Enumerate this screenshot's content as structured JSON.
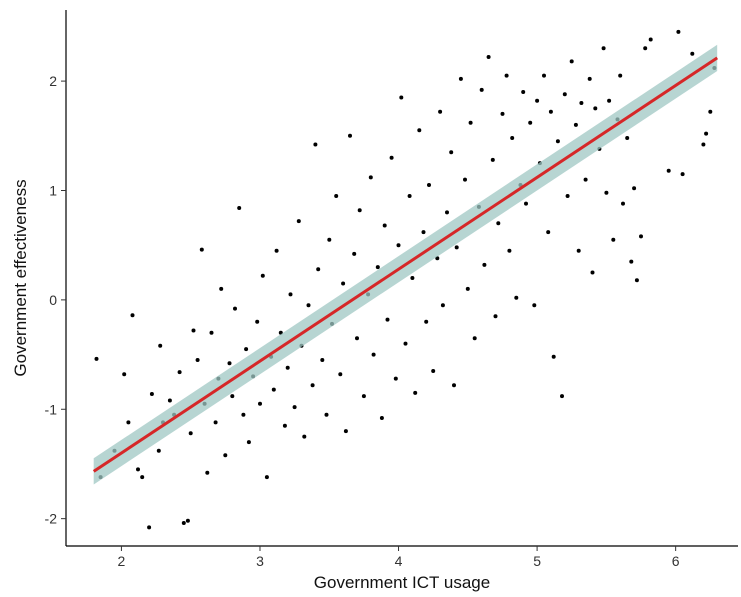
{
  "chart_data": {
    "type": "scatter",
    "title": "",
    "xlabel": "Government ICT usage",
    "ylabel": "Government effectiveness",
    "xlim": [
      1.6,
      6.45
    ],
    "ylim": [
      -2.25,
      2.65
    ],
    "x_ticks": [
      2,
      3,
      4,
      5,
      6
    ],
    "y_ticks": [
      -2,
      -1,
      0,
      1,
      2
    ],
    "x_tick_labels": [
      "2",
      "3",
      "4",
      "5",
      "6"
    ],
    "y_tick_labels": [
      "-2",
      "-1",
      "0",
      "1",
      "2"
    ],
    "grid": false,
    "legend": "none",
    "point_color": "#000000",
    "fit_line": {
      "type": "linear",
      "x_range": [
        1.8,
        6.3
      ],
      "intercept": -3.08,
      "slope": 0.84,
      "color": "#d62728",
      "ci_color": "#9fc7c3",
      "ci_halfwidth": 0.08
    },
    "points": [
      [
        1.82,
        -0.54
      ],
      [
        1.85,
        -1.62
      ],
      [
        1.95,
        -1.38
      ],
      [
        2.02,
        -0.68
      ],
      [
        2.05,
        -1.12
      ],
      [
        2.08,
        -0.14
      ],
      [
        2.12,
        -1.55
      ],
      [
        2.15,
        -1.62
      ],
      [
        2.2,
        -2.08
      ],
      [
        2.22,
        -0.86
      ],
      [
        2.27,
        -1.38
      ],
      [
        2.28,
        -0.42
      ],
      [
        2.3,
        -1.12
      ],
      [
        2.35,
        -0.92
      ],
      [
        2.38,
        -1.05
      ],
      [
        2.42,
        -0.66
      ],
      [
        2.45,
        -2.04
      ],
      [
        2.48,
        -2.02
      ],
      [
        2.5,
        -1.22
      ],
      [
        2.52,
        -0.28
      ],
      [
        2.55,
        -0.55
      ],
      [
        2.58,
        0.46
      ],
      [
        2.6,
        -0.95
      ],
      [
        2.62,
        -1.58
      ],
      [
        2.65,
        -0.3
      ],
      [
        2.68,
        -1.12
      ],
      [
        2.7,
        -0.72
      ],
      [
        2.72,
        0.1
      ],
      [
        2.75,
        -1.42
      ],
      [
        2.78,
        -0.58
      ],
      [
        2.8,
        -0.88
      ],
      [
        2.82,
        -0.08
      ],
      [
        2.85,
        0.84
      ],
      [
        2.88,
        -1.05
      ],
      [
        2.9,
        -0.45
      ],
      [
        2.92,
        -1.3
      ],
      [
        2.95,
        -0.7
      ],
      [
        2.98,
        -0.2
      ],
      [
        3.0,
        -0.95
      ],
      [
        3.02,
        0.22
      ],
      [
        3.05,
        -1.62
      ],
      [
        3.08,
        -0.52
      ],
      [
        3.1,
        -0.82
      ],
      [
        3.12,
        0.45
      ],
      [
        3.15,
        -0.3
      ],
      [
        3.18,
        -1.15
      ],
      [
        3.2,
        -0.62
      ],
      [
        3.22,
        0.05
      ],
      [
        3.25,
        -0.98
      ],
      [
        3.28,
        0.72
      ],
      [
        3.3,
        -0.42
      ],
      [
        3.32,
        -1.25
      ],
      [
        3.35,
        -0.05
      ],
      [
        3.38,
        -0.78
      ],
      [
        3.4,
        1.42
      ],
      [
        3.42,
        0.28
      ],
      [
        3.45,
        -0.55
      ],
      [
        3.48,
        -1.05
      ],
      [
        3.5,
        0.55
      ],
      [
        3.52,
        -0.22
      ],
      [
        3.55,
        0.95
      ],
      [
        3.58,
        -0.68
      ],
      [
        3.6,
        0.15
      ],
      [
        3.62,
        -1.2
      ],
      [
        3.65,
        1.5
      ],
      [
        3.68,
        0.42
      ],
      [
        3.7,
        -0.35
      ],
      [
        3.72,
        0.82
      ],
      [
        3.75,
        -0.88
      ],
      [
        3.78,
        0.05
      ],
      [
        3.8,
        1.12
      ],
      [
        3.82,
        -0.5
      ],
      [
        3.85,
        0.3
      ],
      [
        3.88,
        -1.08
      ],
      [
        3.9,
        0.68
      ],
      [
        3.92,
        -0.18
      ],
      [
        3.95,
        1.3
      ],
      [
        3.98,
        -0.72
      ],
      [
        4.0,
        0.5
      ],
      [
        4.02,
        1.85
      ],
      [
        4.05,
        -0.4
      ],
      [
        4.08,
        0.95
      ],
      [
        4.1,
        0.2
      ],
      [
        4.12,
        -0.85
      ],
      [
        4.15,
        1.55
      ],
      [
        4.18,
        0.62
      ],
      [
        4.2,
        -0.2
      ],
      [
        4.22,
        1.05
      ],
      [
        4.25,
        -0.65
      ],
      [
        4.28,
        0.38
      ],
      [
        4.3,
        1.72
      ],
      [
        4.32,
        -0.05
      ],
      [
        4.35,
        0.8
      ],
      [
        4.38,
        1.35
      ],
      [
        4.4,
        -0.78
      ],
      [
        4.42,
        0.48
      ],
      [
        4.45,
        2.02
      ],
      [
        4.48,
        1.1
      ],
      [
        4.5,
        0.1
      ],
      [
        4.52,
        1.62
      ],
      [
        4.55,
        -0.35
      ],
      [
        4.58,
        0.85
      ],
      [
        4.6,
        1.92
      ],
      [
        4.62,
        0.32
      ],
      [
        4.65,
        2.22
      ],
      [
        4.68,
        1.28
      ],
      [
        4.7,
        -0.15
      ],
      [
        4.72,
        0.7
      ],
      [
        4.75,
        1.7
      ],
      [
        4.78,
        2.05
      ],
      [
        4.8,
        0.45
      ],
      [
        4.82,
        1.48
      ],
      [
        4.85,
        0.02
      ],
      [
        4.88,
        1.05
      ],
      [
        4.9,
        1.9
      ],
      [
        4.92,
        0.88
      ],
      [
        4.95,
        1.62
      ],
      [
        4.98,
        -0.05
      ],
      [
        5.0,
        1.82
      ],
      [
        5.02,
        1.25
      ],
      [
        5.05,
        2.05
      ],
      [
        5.08,
        0.62
      ],
      [
        5.1,
        1.72
      ],
      [
        5.12,
        -0.52
      ],
      [
        5.15,
        1.45
      ],
      [
        5.18,
        -0.88
      ],
      [
        5.2,
        1.88
      ],
      [
        5.22,
        0.95
      ],
      [
        5.25,
        2.18
      ],
      [
        5.28,
        1.6
      ],
      [
        5.3,
        0.45
      ],
      [
        5.32,
        1.8
      ],
      [
        5.35,
        1.1
      ],
      [
        5.38,
        2.02
      ],
      [
        5.4,
        0.25
      ],
      [
        5.42,
        1.75
      ],
      [
        5.45,
        1.38
      ],
      [
        5.48,
        2.3
      ],
      [
        5.5,
        0.98
      ],
      [
        5.52,
        1.82
      ],
      [
        5.55,
        0.55
      ],
      [
        5.58,
        1.65
      ],
      [
        5.6,
        2.05
      ],
      [
        5.62,
        0.88
      ],
      [
        5.65,
        1.48
      ],
      [
        5.68,
        0.35
      ],
      [
        5.7,
        1.02
      ],
      [
        5.72,
        0.18
      ],
      [
        5.75,
        0.58
      ],
      [
        5.78,
        2.3
      ],
      [
        5.82,
        2.38
      ],
      [
        5.95,
        1.18
      ],
      [
        6.02,
        2.45
      ],
      [
        6.05,
        1.15
      ],
      [
        6.12,
        2.25
      ],
      [
        6.2,
        1.42
      ],
      [
        6.22,
        1.52
      ],
      [
        6.25,
        1.72
      ],
      [
        6.28,
        2.12
      ]
    ]
  }
}
